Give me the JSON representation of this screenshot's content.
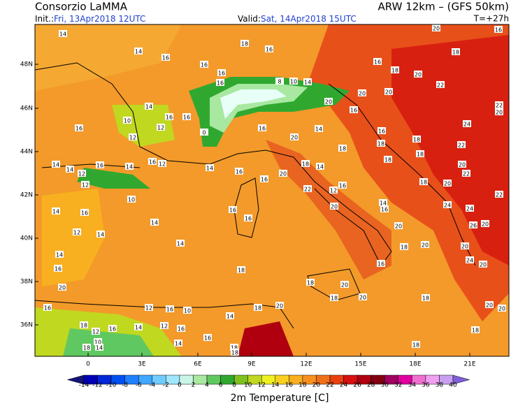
{
  "header": {
    "title": "Consorzio LaMMA",
    "model": "ARW 12km  – (GFS 50km)",
    "init_label": "Init.:",
    "init": "Fri, 13Apr2018 12UTC",
    "valid_label": "Valid:",
    "valid": "Sat, 14Apr2018 15UTC",
    "lead": "T=+27h"
  },
  "map": {
    "lat_labels": [
      "48N",
      "46N",
      "44N",
      "42N",
      "40N",
      "38N",
      "36N"
    ],
    "lon_labels": [
      "0",
      "3E",
      "6E",
      "9E",
      "12E",
      "15E",
      "18E",
      "21E"
    ],
    "stations": [
      14,
      18,
      16,
      14,
      16,
      16,
      16,
      16,
      8,
      10,
      16,
      18,
      20,
      22,
      20,
      20,
      20,
      14,
      14,
      10,
      16,
      12,
      12,
      16,
      0,
      16,
      16,
      20,
      14,
      16,
      16,
      18,
      22,
      24,
      22,
      20,
      18,
      18,
      18,
      20,
      22,
      18,
      18,
      20,
      22,
      14,
      14,
      12,
      16,
      14,
      16,
      12,
      14,
      16,
      16,
      20,
      18,
      14,
      22,
      12,
      20,
      16,
      16,
      20,
      14,
      24,
      24,
      20,
      26,
      20,
      24,
      20,
      12,
      10,
      14,
      16,
      12,
      14,
      14,
      16,
      16,
      14,
      14,
      16,
      20,
      18,
      16,
      18,
      18,
      20,
      20,
      16,
      18,
      20,
      18,
      18,
      20,
      20,
      18,
      20,
      14,
      12,
      16,
      10,
      16,
      14,
      12,
      16,
      12,
      10,
      14,
      18,
      14,
      16,
      18,
      18,
      18,
      18,
      16,
      20,
      18
    ]
  },
  "colorbar": {
    "title": "2m Temperature [C]",
    "ticks": [
      -14,
      -12,
      -10,
      -8,
      -6,
      -4,
      -2,
      0,
      2,
      4,
      6,
      8,
      10,
      12,
      14,
      16,
      18,
      20,
      22,
      24,
      26,
      28,
      30,
      32,
      34,
      36,
      38,
      40
    ]
  }
}
